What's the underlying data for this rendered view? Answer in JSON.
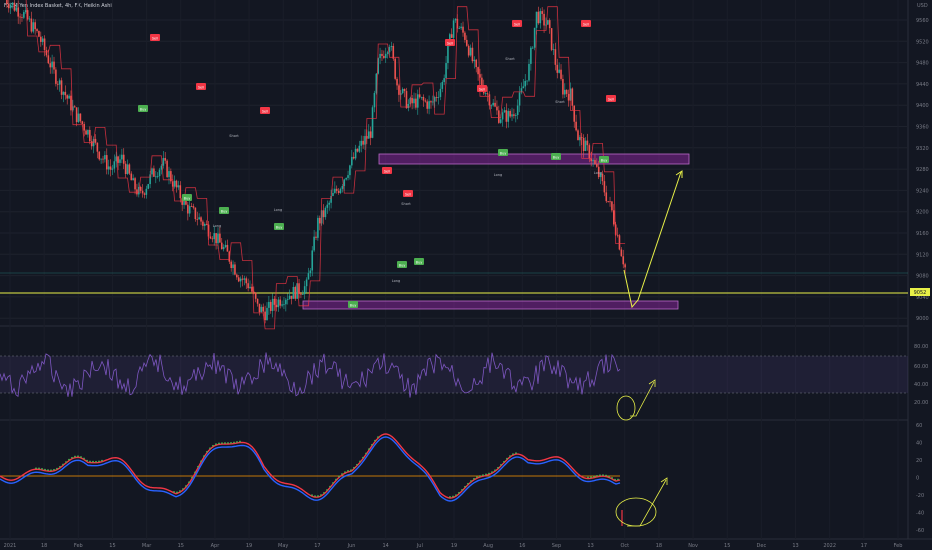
{
  "header": {
    "title": "FXCM Yen Index Basket, 4h, FX, Heikin Ashi"
  },
  "price_axis": {
    "labels": [
      "9560",
      "9520",
      "9480",
      "9440",
      "9400",
      "9360",
      "9320",
      "9280",
      "9240",
      "9200",
      "9160",
      "9120",
      "9080",
      "9040",
      "9000"
    ],
    "unit_label": "USD",
    "current_price_tag": "9052"
  },
  "rsi_axis": {
    "labels": [
      "80.00",
      "60.00",
      "40.00",
      "20.00"
    ]
  },
  "osc_axis": {
    "labels": [
      "60",
      "40",
      "20",
      "0",
      "-20",
      "-40",
      "-60"
    ]
  },
  "time_axis": {
    "labels": [
      "2021",
      "18",
      "Feb",
      "15",
      "Mar",
      "15",
      "Apr",
      "19",
      "May",
      "17",
      "Jun",
      "14",
      "Jul",
      "19",
      "Aug",
      "16",
      "Sep",
      "13",
      "Oct",
      "18",
      "Nov",
      "15",
      "Dec",
      "13",
      "2022",
      "17",
      "Feb"
    ]
  },
  "signals": {
    "sell": "Sell",
    "buy": "Buy",
    "long": "Long",
    "short": "Short"
  },
  "chart_data": {
    "type": "candlestick",
    "price_ylim": [
      8990,
      9580
    ],
    "price_path": [
      [
        0,
        9600
      ],
      [
        10,
        9570
      ],
      [
        18,
        9530
      ],
      [
        26,
        9460
      ],
      [
        32,
        9420
      ],
      [
        38,
        9380
      ],
      [
        44,
        9350
      ],
      [
        50,
        9310
      ],
      [
        56,
        9280
      ],
      [
        62,
        9300
      ],
      [
        68,
        9250
      ],
      [
        72,
        9230
      ],
      [
        78,
        9270
      ],
      [
        84,
        9290
      ],
      [
        90,
        9250
      ],
      [
        96,
        9210
      ],
      [
        102,
        9190
      ],
      [
        110,
        9160
      ],
      [
        118,
        9120
      ],
      [
        124,
        9080
      ],
      [
        130,
        9060
      ],
      [
        134,
        9020
      ],
      [
        138,
        9010
      ],
      [
        142,
        9025
      ],
      [
        148,
        9040
      ],
      [
        154,
        9050
      ],
      [
        160,
        9060
      ],
      [
        166,
        9180
      ],
      [
        170,
        9200
      ],
      [
        174,
        9230
      ],
      [
        178,
        9250
      ],
      [
        182,
        9280
      ],
      [
        188,
        9320
      ],
      [
        194,
        9350
      ],
      [
        198,
        9480
      ],
      [
        204,
        9520
      ],
      [
        208,
        9440
      ],
      [
        214,
        9400
      ],
      [
        220,
        9410
      ],
      [
        226,
        9400
      ],
      [
        232,
        9440
      ],
      [
        238,
        9560
      ],
      [
        244,
        9530
      ],
      [
        250,
        9460
      ],
      [
        256,
        9420
      ],
      [
        262,
        9380
      ],
      [
        268,
        9380
      ],
      [
        272,
        9400
      ],
      [
        278,
        9470
      ],
      [
        282,
        9570
      ],
      [
        288,
        9550
      ],
      [
        292,
        9480
      ],
      [
        296,
        9430
      ],
      [
        300,
        9420
      ],
      [
        304,
        9340
      ],
      [
        310,
        9310
      ],
      [
        316,
        9260
      ],
      [
        322,
        9200
      ],
      [
        326,
        9140
      ],
      [
        330,
        9080
      ]
    ],
    "rsi_range": [
      20,
      80
    ],
    "osc_range": [
      -60,
      60
    ],
    "levels": {
      "resistance_zone": [
        9282,
        9296
      ],
      "support_zone": [
        9018,
        9030
      ],
      "horizontal_line": 9052
    }
  }
}
